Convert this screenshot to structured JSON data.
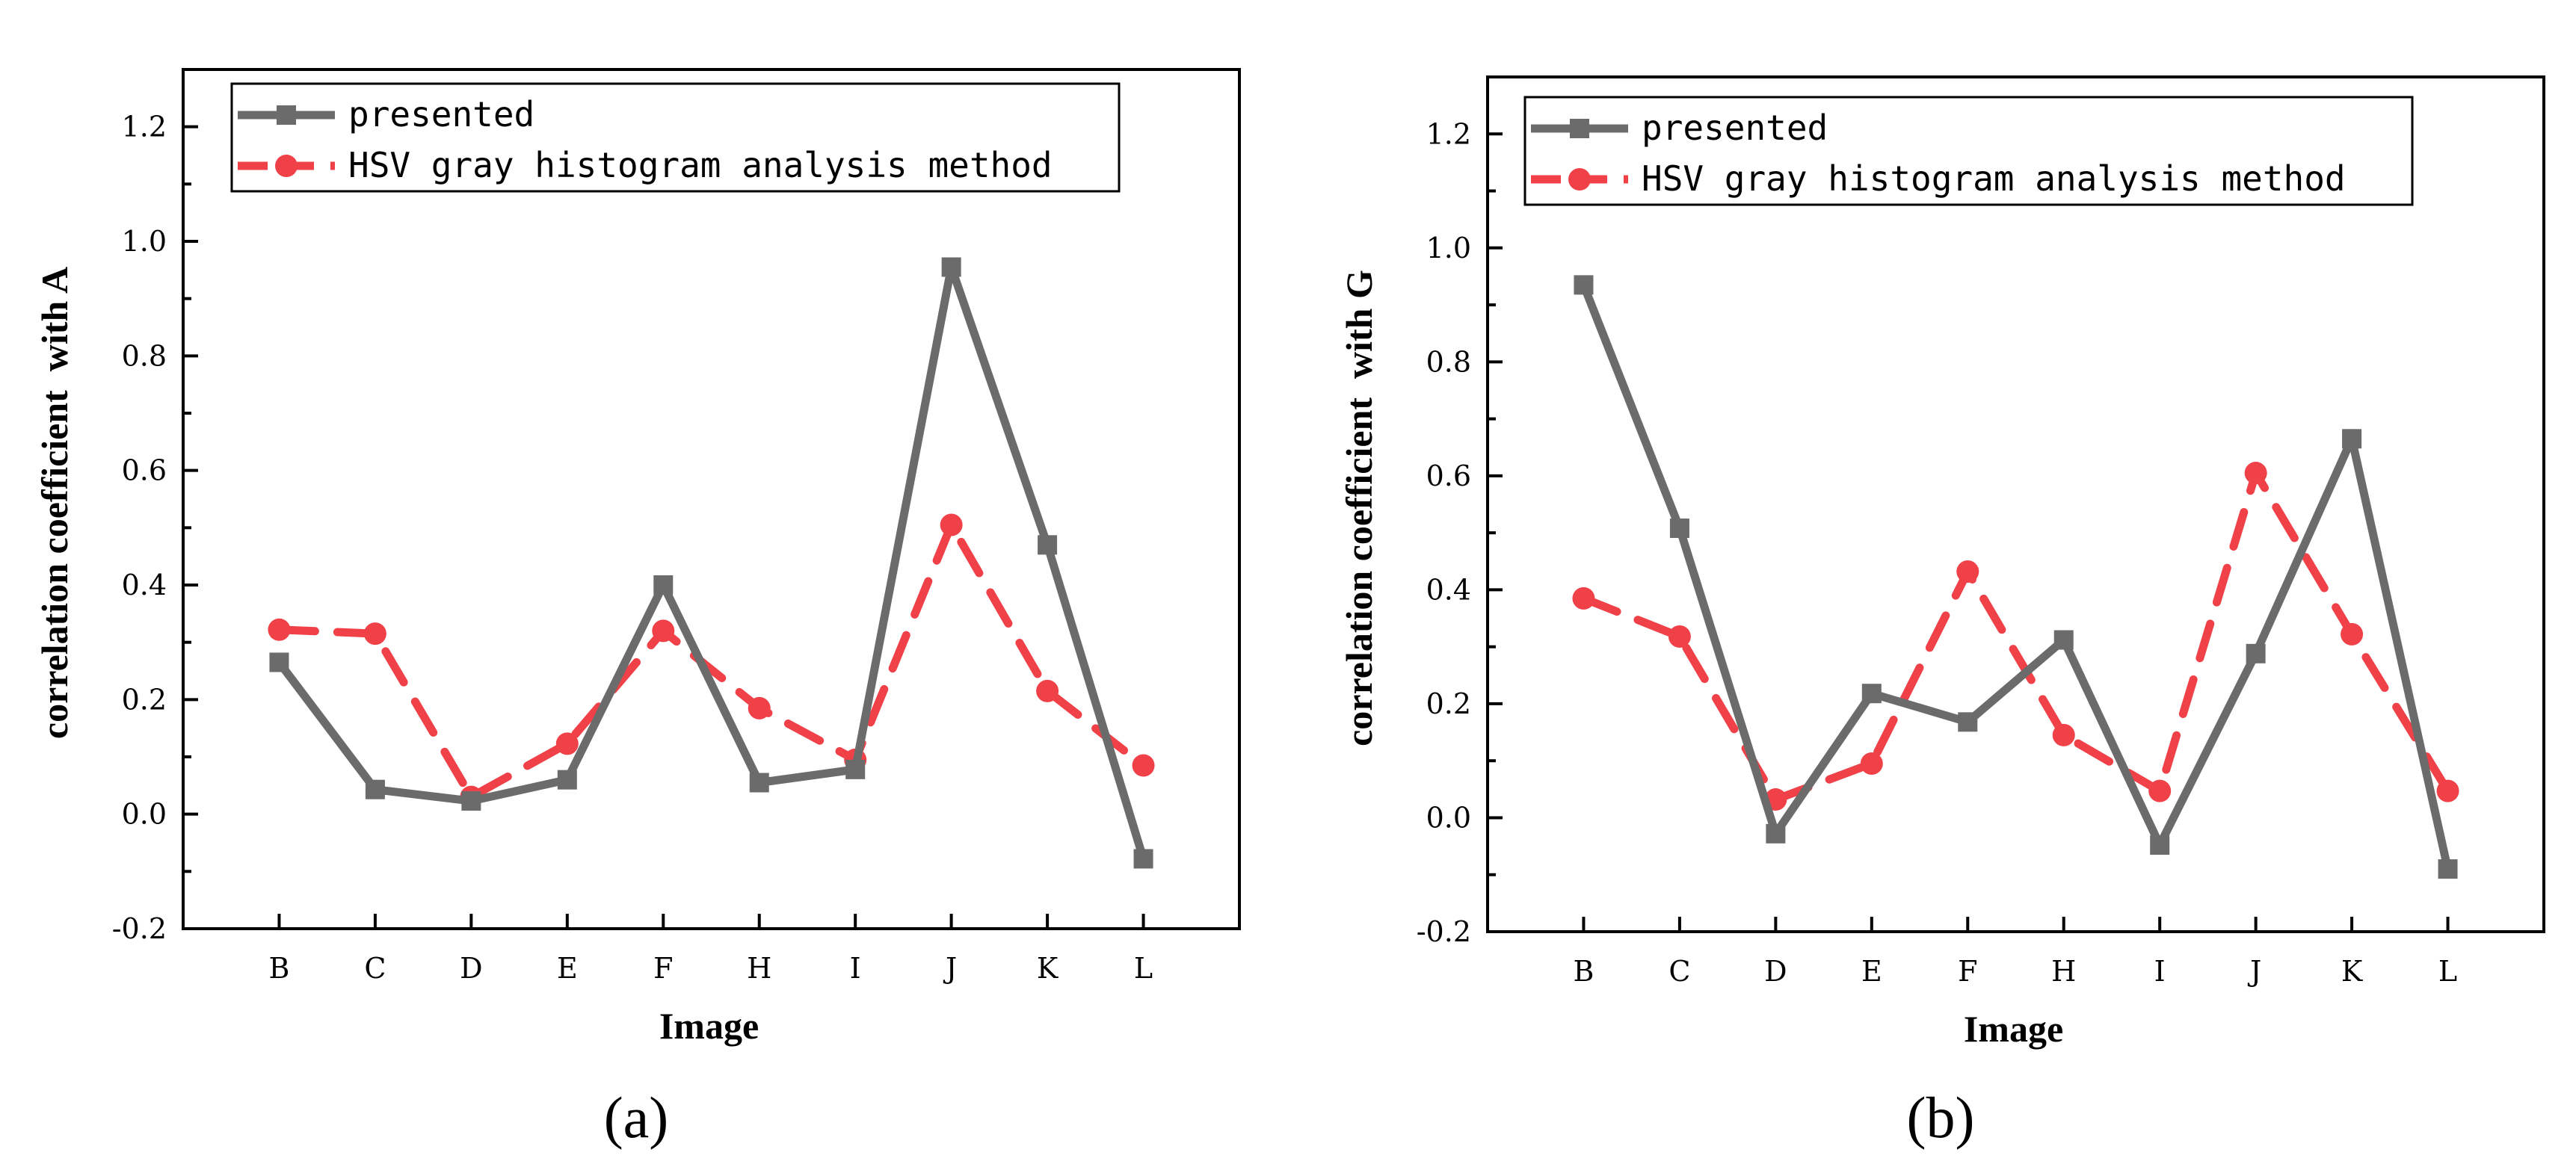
{
  "chart_data": [
    {
      "type": "line",
      "panel_label": "(a)",
      "xlabel": "Image",
      "ylabel": "correlation coefficient  with A",
      "categories": [
        "B",
        "C",
        "D",
        "E",
        "F",
        "H",
        "I",
        "J",
        "K",
        "L"
      ],
      "ylim": [
        -0.2,
        1.3
      ],
      "yticks": [
        -0.2,
        0.0,
        0.2,
        0.4,
        0.6,
        0.8,
        1.0,
        1.2
      ],
      "ytick_labels": [
        "-0.2",
        "0.0",
        "0.2",
        "0.4",
        "0.6",
        "0.8",
        "1.0",
        "1.2"
      ],
      "legend_position": "top-left",
      "series": [
        {
          "name": "presented",
          "color": "#6b6b6b",
          "marker": "square",
          "dash": "solid",
          "values": [
            0.265,
            0.043,
            0.023,
            0.06,
            0.4,
            0.055,
            0.078,
            0.955,
            0.47,
            -0.078
          ]
        },
        {
          "name": "HSV gray histogram analysis method",
          "color": "#f04048",
          "marker": "circle",
          "dash": "dashed",
          "values": [
            0.322,
            0.315,
            0.03,
            0.123,
            0.32,
            0.185,
            0.095,
            0.505,
            0.215,
            0.085
          ]
        }
      ]
    },
    {
      "type": "line",
      "panel_label": "(b)",
      "xlabel": "Image",
      "ylabel": "correlation coefficient  with G",
      "categories": [
        "B",
        "C",
        "D",
        "E",
        "F",
        "H",
        "I",
        "J",
        "K",
        "L"
      ],
      "ylim": [
        -0.2,
        1.3
      ],
      "yticks": [
        -0.2,
        0.0,
        0.2,
        0.4,
        0.6,
        0.8,
        1.0,
        1.2
      ],
      "ytick_labels": [
        "-0.2",
        "0.0",
        "0.2",
        "0.4",
        "0.6",
        "0.8",
        "1.0",
        "1.2"
      ],
      "legend_position": "top-left",
      "series": [
        {
          "name": "presented",
          "color": "#6b6b6b",
          "marker": "square",
          "dash": "solid",
          "values": [
            0.935,
            0.508,
            -0.028,
            0.218,
            0.168,
            0.312,
            -0.048,
            0.288,
            0.665,
            -0.09
          ]
        },
        {
          "name": "HSV gray histogram analysis method",
          "color": "#f04048",
          "marker": "circle",
          "dash": "dashed",
          "values": [
            0.385,
            0.318,
            0.032,
            0.095,
            0.432,
            0.145,
            0.047,
            0.605,
            0.322,
            0.047
          ]
        }
      ]
    }
  ]
}
